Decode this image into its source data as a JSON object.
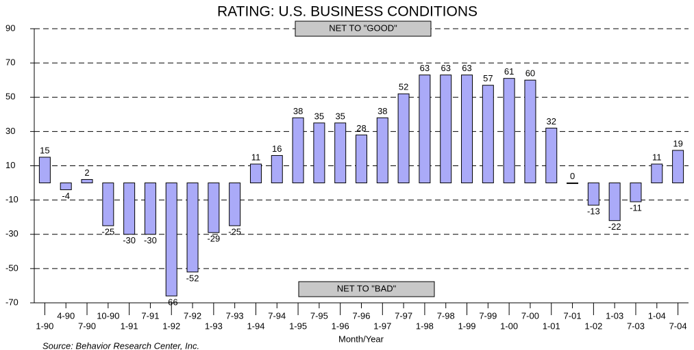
{
  "chart_data": {
    "type": "bar",
    "title": "RATING:  U.S. BUSINESS CONDITIONS",
    "x_label": "Month/Year",
    "source": "Source: Behavior Research Center, Inc.",
    "annotations": [
      "NET TO \"GOOD\"",
      "NET TO \"BAD\""
    ],
    "categories": [
      "1-90",
      "4-90",
      "7-90",
      "10-90",
      "1-91",
      "7-91",
      "1-92",
      "7-92",
      "1-93",
      "7-93",
      "1-94",
      "7-94",
      "1-95",
      "7-95",
      "1-96",
      "7-96",
      "1-97",
      "7-97",
      "1-98",
      "7-98",
      "1-99",
      "7-99",
      "1-00",
      "7-00",
      "1-01",
      "7-01",
      "1-02",
      "1-03",
      "7-03",
      "1-04",
      "7-04"
    ],
    "values": [
      15,
      -4,
      2,
      -25,
      -30,
      -30,
      -66,
      -52,
      -29,
      -25,
      11,
      16,
      38,
      35,
      35,
      28,
      38,
      52,
      63,
      63,
      63,
      57,
      61,
      60,
      32,
      0,
      -13,
      -22,
      -11,
      11,
      19
    ],
    "color": "#aaaaf8",
    "ylim": [
      -70,
      90
    ],
    "yticks": [
      -70,
      -50,
      -30,
      -10,
      10,
      30,
      50,
      70,
      90
    ],
    "grid": true
  }
}
